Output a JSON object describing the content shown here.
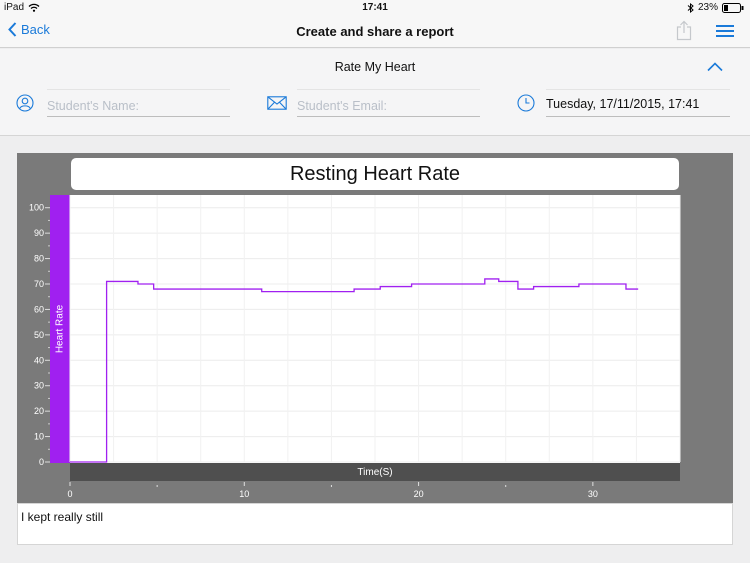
{
  "status": {
    "device": "iPad",
    "time": "17:41",
    "battery": "23%"
  },
  "nav": {
    "back_label": "Back",
    "title": "Create and share a report"
  },
  "form": {
    "title": "Rate My Heart",
    "name_placeholder": "Student's Name:",
    "email_placeholder": "Student's Email:",
    "date_value": "Tuesday, 17/11/2015, 17:41"
  },
  "colors": {
    "accent": "#1a7ad9",
    "series": "#a020f0",
    "panel": "#7a7a7a"
  },
  "chart_data": {
    "type": "line",
    "title": "Resting Heart Rate",
    "xlabel": "Time(S)",
    "ylabel": "Heart Rate",
    "xlim": [
      0,
      35
    ],
    "ylim": [
      0,
      105
    ],
    "yticks": [
      0,
      10,
      20,
      30,
      40,
      50,
      60,
      70,
      80,
      90,
      100
    ],
    "xticks": [
      0,
      10,
      20,
      30
    ],
    "grid": true,
    "series": [
      {
        "color": "#a020f0",
        "step": true,
        "points": [
          [
            0,
            0
          ],
          [
            2.1,
            0
          ],
          [
            2.1,
            71
          ],
          [
            3.9,
            70
          ],
          [
            4.8,
            68
          ],
          [
            11.0,
            67
          ],
          [
            16.3,
            68
          ],
          [
            17.8,
            69
          ],
          [
            19.6,
            70
          ],
          [
            23.8,
            72
          ],
          [
            24.6,
            71
          ],
          [
            25.7,
            68
          ],
          [
            26.6,
            69
          ],
          [
            29.2,
            70
          ],
          [
            31.9,
            68
          ],
          [
            32.6,
            68
          ]
        ]
      }
    ]
  },
  "note": {
    "text": "I kept really still"
  }
}
